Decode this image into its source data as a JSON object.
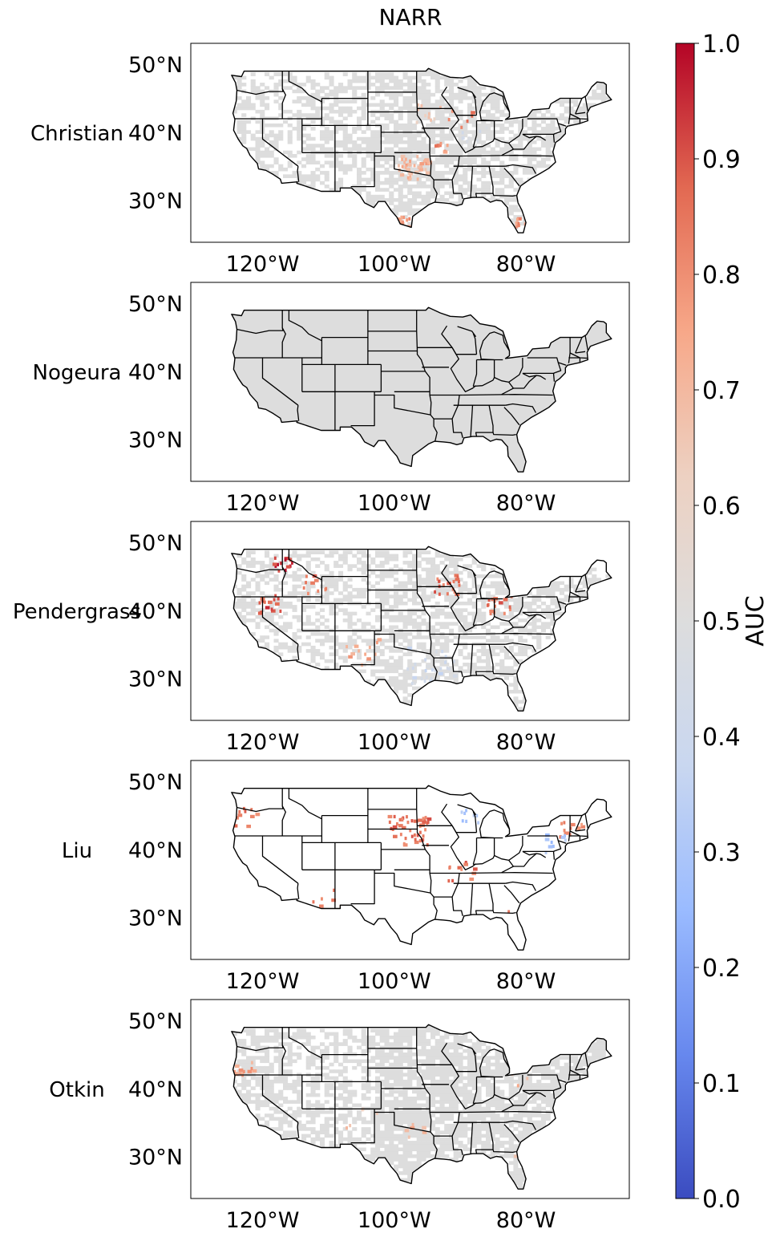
{
  "title": "NARR",
  "colorbar": {
    "label": "AUC",
    "min": 0.0,
    "max": 1.0,
    "ticks": [
      "0.0",
      "0.1",
      "0.2",
      "0.3",
      "0.4",
      "0.5",
      "0.6",
      "0.7",
      "0.8",
      "0.9",
      "1.0"
    ],
    "colormap": "coolwarm",
    "colors": [
      "#3b4cc0",
      "#6788ee",
      "#9abbff",
      "#c9d7f0",
      "#dddddd",
      "#edd1c2",
      "#f7a889",
      "#e26952",
      "#b40426"
    ]
  },
  "axes": {
    "lon_ticks": [
      "120°W",
      "100°W",
      "80°W"
    ],
    "lat_ticks": [
      "50°N",
      "40°N",
      "30°N"
    ]
  },
  "panels": [
    {
      "label": "Christian",
      "land_color": "#dddddd",
      "coverage": 0.62,
      "hotspots": [
        {
          "lon": -97,
          "lat": 35,
          "auc": 0.72,
          "n": 40,
          "spread": 2.5
        },
        {
          "lon": -99,
          "lat": 27,
          "auc": 0.78,
          "n": 16,
          "spread": 1.6
        },
        {
          "lon": -81,
          "lat": 27,
          "auc": 0.8,
          "n": 10,
          "spread": 1.0
        },
        {
          "lon": -95,
          "lat": 43,
          "auc": 0.65,
          "n": 10,
          "spread": 2.0
        },
        {
          "lon": -88,
          "lat": 40,
          "auc": 0.42,
          "n": 8,
          "spread": 2.0
        },
        {
          "lon": -93,
          "lat": 38,
          "auc": 0.8,
          "n": 8,
          "spread": 1.5
        },
        {
          "lon": -90,
          "lat": 42,
          "auc": 0.85,
          "n": 6,
          "spread": 2.0
        }
      ]
    },
    {
      "label": "Nogeura",
      "land_color": "#dddddd",
      "coverage": 0.99,
      "hotspots": []
    },
    {
      "label": "Pendergrass",
      "land_color": "#dddddd",
      "coverage": 0.55,
      "hotspots": [
        {
          "lon": -117,
          "lat": 47,
          "auc": 0.95,
          "n": 14,
          "spread": 1.5
        },
        {
          "lon": -119,
          "lat": 41,
          "auc": 0.9,
          "n": 18,
          "spread": 2.0
        },
        {
          "lon": -112,
          "lat": 44,
          "auc": 0.85,
          "n": 10,
          "spread": 2.0
        },
        {
          "lon": -92,
          "lat": 44,
          "auc": 0.85,
          "n": 18,
          "spread": 2.0
        },
        {
          "lon": -84,
          "lat": 41,
          "auc": 0.85,
          "n": 16,
          "spread": 2.0
        },
        {
          "lon": -105,
          "lat": 34,
          "auc": 0.75,
          "n": 12,
          "spread": 3.0
        },
        {
          "lon": -95,
          "lat": 32,
          "auc": 0.42,
          "n": 30,
          "spread": 4.0
        }
      ]
    },
    {
      "label": "Liu",
      "land_color": "#ffffff",
      "coverage": 0.22,
      "hotspots": [
        {
          "lon": -98,
          "lat": 43,
          "auc": 0.85,
          "n": 45,
          "spread": 3.0
        },
        {
          "lon": -123,
          "lat": 45,
          "auc": 0.85,
          "n": 15,
          "spread": 2.0
        },
        {
          "lon": -73,
          "lat": 43,
          "auc": 0.8,
          "n": 14,
          "spread": 2.0
        },
        {
          "lon": -76,
          "lat": 41,
          "auc": 0.3,
          "n": 10,
          "spread": 2.0
        },
        {
          "lon": -88,
          "lat": 45,
          "auc": 0.3,
          "n": 8,
          "spread": 2.0
        },
        {
          "lon": -90,
          "lat": 37,
          "auc": 0.85,
          "n": 12,
          "spread": 2.0
        },
        {
          "lon": -81,
          "lat": 30,
          "auc": 0.8,
          "n": 8,
          "spread": 2.0
        },
        {
          "lon": -110,
          "lat": 33,
          "auc": 0.85,
          "n": 8,
          "spread": 2.5
        }
      ]
    },
    {
      "label": "Otkin",
      "land_color": "#dddddd",
      "coverage": 0.72,
      "hotspots": [
        {
          "lon": -123,
          "lat": 43,
          "auc": 0.75,
          "n": 14,
          "spread": 1.6
        },
        {
          "lon": -97,
          "lat": 34,
          "auc": 0.7,
          "n": 6,
          "spread": 1.5
        },
        {
          "lon": -80,
          "lat": 30,
          "auc": 0.7,
          "n": 5,
          "spread": 2.0
        },
        {
          "lon": -81,
          "lat": 42,
          "auc": 0.7,
          "n": 5,
          "spread": 2.0
        },
        {
          "lon": -105,
          "lat": 36,
          "auc": 0.65,
          "n": 5,
          "spread": 2.5
        }
      ]
    }
  ]
}
